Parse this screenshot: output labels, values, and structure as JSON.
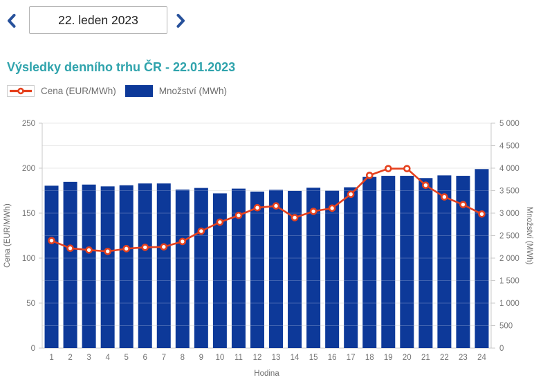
{
  "date_nav": {
    "date_value": "22. leden 2023",
    "prev_icon": "chevron-left",
    "next_icon": "chevron-right",
    "accent_color": "#27519b"
  },
  "page": {
    "title": "Výsledky denního trhu ČR - 22.01.2023",
    "title_color": "#2fa3ac"
  },
  "legend": {
    "items": [
      {
        "label": "Cena (EUR/MWh)",
        "swatch": "line-marker",
        "color": "#e5411e"
      },
      {
        "label": "Množství (MWh)",
        "swatch": "bar",
        "color": "#0d3999"
      }
    ]
  },
  "chart_data": {
    "type": "combo-bar-line",
    "title": "Výsledky denního trhu ČR - 22.01.2023",
    "categories": [
      1,
      2,
      3,
      4,
      5,
      6,
      7,
      8,
      9,
      10,
      11,
      12,
      13,
      14,
      15,
      16,
      17,
      18,
      19,
      20,
      21,
      22,
      23,
      24
    ],
    "series": [
      {
        "name": "Cena (EUR/MWh)",
        "type": "line",
        "axis": "left",
        "color": "#e5411e",
        "values": [
          119.5,
          111,
          109,
          107.5,
          110.5,
          112,
          112.5,
          118.5,
          130,
          140,
          147.5,
          156,
          158,
          145,
          152,
          155.5,
          171,
          192,
          199.5,
          199.5,
          181,
          168,
          159.5,
          149
        ]
      },
      {
        "name": "Množství (MWh)",
        "type": "bar",
        "axis": "right",
        "color": "#0d3999",
        "values": [
          3610,
          3695,
          3635,
          3595,
          3620,
          3660,
          3660,
          3525,
          3560,
          3440,
          3545,
          3480,
          3520,
          3495,
          3565,
          3500,
          3575,
          3805,
          3830,
          3830,
          3780,
          3840,
          3830,
          3980
        ]
      }
    ],
    "xlabel": "Hodina",
    "left_axis": {
      "label": "Cena (EUR/MWh)",
      "min": 0,
      "max": 250,
      "tick_labels": [
        "0",
        "50",
        "100",
        "150",
        "200",
        "250"
      ]
    },
    "right_axis": {
      "label": "Množství (MWh)",
      "min": 0,
      "max": 5000,
      "tick_labels": [
        "0",
        "500",
        "1 000",
        "1 500",
        "2 000",
        "2 500",
        "3 000",
        "3 500",
        "4 000",
        "4 500",
        "5 000"
      ]
    },
    "grid": true,
    "legend_position": "top-left"
  }
}
